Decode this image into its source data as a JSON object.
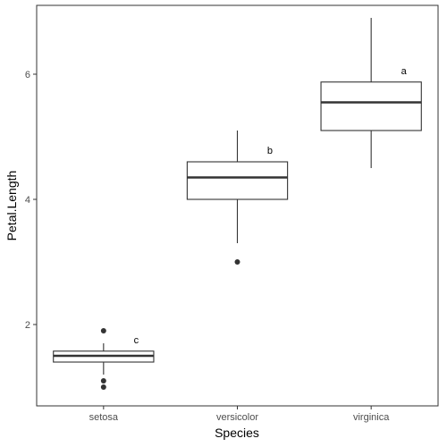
{
  "chart_data": {
    "type": "boxplot",
    "xlabel": "Species",
    "ylabel": "Petal.Length",
    "categories": [
      "setosa",
      "versicolor",
      "virginica"
    ],
    "ylim": [
      0.7,
      7.1
    ],
    "yticks": [
      2,
      4,
      6
    ],
    "ytick_labels": [
      "2",
      "4",
      "6"
    ],
    "grid": false,
    "boxes": [
      {
        "category": "setosa",
        "whisker_low": 1.2,
        "q1": 1.4,
        "median": 1.5,
        "q3": 1.575,
        "whisker_high": 1.7,
        "outliers": [
          1.0,
          1.1,
          1.9
        ],
        "annotation": "c"
      },
      {
        "category": "versicolor",
        "whisker_low": 3.3,
        "q1": 4.0,
        "median": 4.35,
        "q3": 4.6,
        "whisker_high": 5.1,
        "outliers": [
          3.0
        ],
        "annotation": "b"
      },
      {
        "category": "virginica",
        "whisker_low": 4.5,
        "q1": 5.1,
        "median": 5.55,
        "q3": 5.875,
        "whisker_high": 6.9,
        "outliers": [],
        "annotation": "a"
      }
    ],
    "colors": {
      "box_fill": "#ffffff",
      "box_stroke": "#333333",
      "panel_border": "#333333",
      "point": "#333333"
    }
  }
}
